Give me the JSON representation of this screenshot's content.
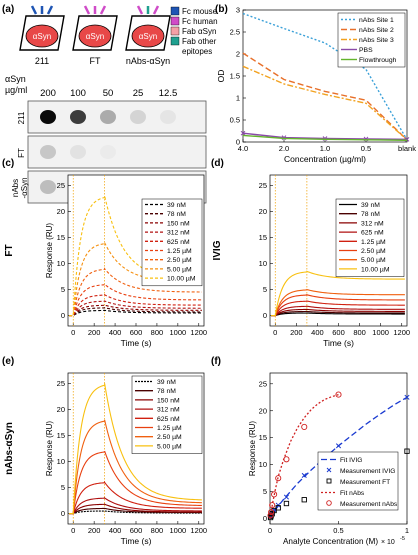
{
  "figure": {
    "panel_labels": [
      "(a)",
      "(b)",
      "(c)",
      "(d)",
      "(e)",
      "(f)"
    ],
    "legend_a": {
      "items": [
        {
          "label": "Fc mouse",
          "color": "#1f55b4"
        },
        {
          "label": "Fc human",
          "color": "#d04cc8"
        },
        {
          "label": "Fab αSyn",
          "color": "#f4a0a6"
        },
        {
          "label": "Fab other",
          "color": "#20a090"
        },
        {
          "label": "epitopes",
          "color": ""
        }
      ],
      "antigen_label": "αSyn",
      "antibodies": [
        "211",
        "FT",
        "nAbs-αSyn"
      ]
    },
    "dot_blot": {
      "title_line1": "αSyn",
      "title_line2": "µg/ml",
      "concentrations": [
        "200",
        "100",
        "50",
        "25",
        "12.5"
      ],
      "rows": [
        {
          "label": "211",
          "intensities": [
            1.0,
            0.78,
            0.3,
            0.12,
            0.05
          ]
        },
        {
          "label": "FT",
          "intensities": [
            0.18,
            0.06,
            0.02,
            0.0,
            0.0
          ]
        },
        {
          "label": "nAbs\n-αSyn",
          "intensities": [
            0.22,
            0.15,
            0.07,
            0.03,
            0.0
          ]
        }
      ]
    }
  },
  "chart_data": [
    {
      "panel": "(b)",
      "type": "line",
      "xlabel": "Concentration (µg/ml)",
      "ylabel": "OD",
      "categories": [
        "4.0",
        "2.0",
        "1.0",
        "0.5",
        "blank"
      ],
      "ylim": [
        0,
        3
      ],
      "yticks": [
        0,
        0.5,
        1,
        1.5,
        2,
        2.5,
        3
      ],
      "grid": false,
      "legend_position": "top-right",
      "series": [
        {
          "name": "nAbs Site 1",
          "color": "#3aa0d8",
          "dash": "2,2",
          "values": [
            2.92,
            2.58,
            2.25,
            1.65,
            0.05
          ]
        },
        {
          "name": "nAbs Site 2",
          "color": "#e8702a",
          "dash": "6,3",
          "values": [
            2.02,
            1.42,
            1.15,
            0.95,
            0.05
          ]
        },
        {
          "name": "nAbs Site 3",
          "color": "#f2a220",
          "dash": "6,2,2,2",
          "values": [
            1.72,
            1.32,
            1.08,
            0.88,
            0.05
          ]
        },
        {
          "name": "PBS",
          "color": "#8a4aa8",
          "dash": "",
          "marker": "x",
          "values": [
            0.2,
            0.1,
            0.08,
            0.07,
            0.06
          ]
        },
        {
          "name": "Flowthrough",
          "color": "#64b42c",
          "dash": "",
          "values": [
            0.15,
            0.08,
            0.06,
            0.05,
            0.04
          ]
        }
      ]
    },
    {
      "panel": "(c)",
      "type": "line",
      "side_label": "FT",
      "xlabel": "Time (s)",
      "ylabel": "Response (RU)",
      "xlim": [
        -50,
        1250
      ],
      "xticks": [
        0,
        200,
        400,
        600,
        800,
        1000,
        1200
      ],
      "ylim": [
        -2,
        27
      ],
      "yticks": [
        0,
        5,
        10,
        15,
        20,
        25
      ],
      "legend_position": "top-right",
      "association_end": 300,
      "series": [
        {
          "name": "39 nM",
          "color": "#000000",
          "dash": "3,2",
          "plateau": 1.0,
          "end": 0.5
        },
        {
          "name": "78 nM",
          "color": "#4a0000",
          "dash": "3,2",
          "plateau": 1.5,
          "end": 0.7
        },
        {
          "name": "150 nM",
          "color": "#8a0000",
          "dash": "3,2",
          "plateau": 2.0,
          "end": 1.0
        },
        {
          "name": "312 nM",
          "color": "#b01010",
          "dash": "3,2",
          "plateau": 2.8,
          "end": 1.4
        },
        {
          "name": "625 nM",
          "color": "#d02010",
          "dash": "3,2",
          "plateau": 4.0,
          "end": 2.0
        },
        {
          "name": "1.25 µM",
          "color": "#e84010",
          "dash": "3,2",
          "plateau": 6.0,
          "end": 3.0
        },
        {
          "name": "2.50 µM",
          "color": "#f06010",
          "dash": "3,2",
          "plateau": 9.0,
          "end": 4.5
        },
        {
          "name": "5.00 µM",
          "color": "#f59010",
          "dash": "3,2",
          "plateau": 14.0,
          "end": 6.5
        },
        {
          "name": "10.00 µM",
          "color": "#f8c010",
          "dash": "3,2",
          "plateau": 23.0,
          "end": 7.0
        }
      ]
    },
    {
      "panel": "(d)",
      "type": "line",
      "side_label": "IVIG",
      "xlabel": "Time (s)",
      "ylabel": "",
      "xlim": [
        -50,
        1250
      ],
      "xticks": [
        0,
        200,
        400,
        600,
        800,
        1000,
        1200
      ],
      "ylim": [
        -2,
        27
      ],
      "yticks": [
        0,
        5,
        10,
        15,
        20,
        25
      ],
      "legend_position": "top-right",
      "association_end": 300,
      "series": [
        {
          "name": "39 nM",
          "color": "#000000",
          "dash": "",
          "plateau": 0.5,
          "end": 0.3
        },
        {
          "name": "78 nM",
          "color": "#4a0000",
          "dash": "",
          "plateau": 0.8,
          "end": 0.5
        },
        {
          "name": "312 nM",
          "color": "#8a0000",
          "dash": "",
          "plateau": 1.2,
          "end": 0.8
        },
        {
          "name": "625 nM",
          "color": "#b01010",
          "dash": "",
          "plateau": 1.8,
          "end": 1.2
        },
        {
          "name": "1.25 µM",
          "color": "#d02010",
          "dash": "",
          "plateau": 2.8,
          "end": 2.0
        },
        {
          "name": "2.50 µM",
          "color": "#e84010",
          "dash": "",
          "plateau": 4.0,
          "end": 3.0
        },
        {
          "name": "5.00 µM",
          "color": "#f06010",
          "dash": "",
          "plateau": 5.0,
          "end": 4.0
        },
        {
          "name": "10.00 µM",
          "color": "#f8c010",
          "dash": "",
          "plateau": 8.5,
          "end": 7.0
        }
      ]
    },
    {
      "panel": "(e)",
      "type": "line",
      "side_label": "nAbs-αSyn",
      "xlabel": "Time (s)",
      "ylabel": "Response (RU)",
      "xlim": [
        -50,
        1250
      ],
      "xticks": [
        0,
        200,
        400,
        600,
        800,
        1000,
        1200
      ],
      "ylim": [
        -2,
        27
      ],
      "yticks": [
        0,
        5,
        10,
        15,
        20,
        25
      ],
      "legend_position": "top-right",
      "association_end": 300,
      "series": [
        {
          "name": "39 nM",
          "color": "#000000",
          "dash": "2,1",
          "plateau": 0.5,
          "end": 0.1
        },
        {
          "name": "78 nM",
          "color": "#4a0000",
          "dash": "",
          "plateau": 1.0,
          "end": 0.2
        },
        {
          "name": "150 nM",
          "color": "#8a0000",
          "dash": "",
          "plateau": 1.8,
          "end": 0.3
        },
        {
          "name": "312 nM",
          "color": "#b01010",
          "dash": "",
          "plateau": 3.0,
          "end": 0.5
        },
        {
          "name": "625 nM",
          "color": "#d02010",
          "dash": "",
          "plateau": 6.0,
          "end": 1.0
        },
        {
          "name": "1.25 µM",
          "color": "#e84010",
          "dash": "",
          "plateau": 12.0,
          "end": 1.5
        },
        {
          "name": "2.50 µM",
          "color": "#f06010",
          "dash": "",
          "plateau": 18.0,
          "end": 2.0
        },
        {
          "name": "5.00 µM",
          "color": "#f8c010",
          "dash": "",
          "plateau": 25.0,
          "end": 2.5
        }
      ]
    },
    {
      "panel": "(f)",
      "type": "scatter",
      "xlabel": "Analyte Concentration (M)",
      "x_exponent": "× 10",
      "x_exponent_power": "-5",
      "ylabel": "Response (RU)",
      "xlim": [
        0,
        1
      ],
      "xticks": [
        0,
        0.5,
        1
      ],
      "ylim": [
        -1,
        27
      ],
      "yticks": [
        0,
        5,
        10,
        15,
        20,
        25
      ],
      "legend_position": "bottom-right",
      "series": [
        {
          "name": "Fit IVIG",
          "kind": "fit",
          "color": "#1a3ad0",
          "dash": "6,3",
          "x": [
            0,
            0.05,
            0.1,
            0.2,
            0.3,
            0.4,
            0.5,
            0.6,
            0.7,
            0.8,
            0.9,
            1.0
          ],
          "values": [
            0,
            2.0,
            3.6,
            6.5,
            9.0,
            11.3,
            13.5,
            15.5,
            17.5,
            19.3,
            21.0,
            22.5
          ]
        },
        {
          "name": "Measurement IVIG",
          "kind": "marker",
          "marker": "x",
          "color": "#1a3ad0",
          "x": [
            0.004,
            0.008,
            0.016,
            0.03,
            0.06,
            0.12,
            0.25,
            0.5,
            1.0
          ],
          "values": [
            0.4,
            0.7,
            1.0,
            1.6,
            2.5,
            4.0,
            8.0,
            13.5,
            22.5
          ]
        },
        {
          "name": "Measurement FT",
          "kind": "marker",
          "marker": "square",
          "color": "#000000",
          "x": [
            0.004,
            0.008,
            0.016,
            0.03,
            0.06,
            0.12,
            0.25,
            0.5,
            1.0
          ],
          "values": [
            0.2,
            0.5,
            0.9,
            1.5,
            2.0,
            2.8,
            3.5,
            7.0,
            12.5
          ]
        },
        {
          "name": "Fit nAbs",
          "kind": "fit",
          "color": "#d02020",
          "dash": "2,2",
          "x": [
            0,
            0.02,
            0.04,
            0.06,
            0.1,
            0.15,
            0.2,
            0.25,
            0.3,
            0.35,
            0.4,
            0.45,
            0.5
          ],
          "values": [
            0,
            3.0,
            5.5,
            7.8,
            11.0,
            14.3,
            16.8,
            18.7,
            20.2,
            21.3,
            22.1,
            22.6,
            23.0
          ]
        },
        {
          "name": "Measurement nAbs",
          "kind": "marker",
          "marker": "circle",
          "color": "#d02020",
          "x": [
            0.004,
            0.008,
            0.016,
            0.03,
            0.06,
            0.12,
            0.25,
            0.5
          ],
          "values": [
            0.6,
            1.2,
            2.5,
            4.5,
            7.5,
            11.0,
            17.0,
            23.0
          ]
        }
      ]
    }
  ]
}
